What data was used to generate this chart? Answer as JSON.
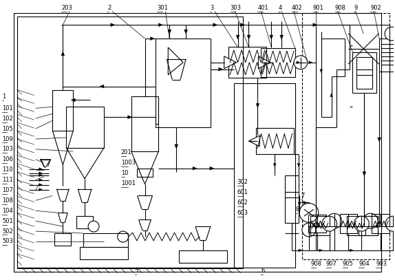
{
  "fig_width": 5.74,
  "fig_height": 4.07,
  "bg_color": "#ffffff"
}
